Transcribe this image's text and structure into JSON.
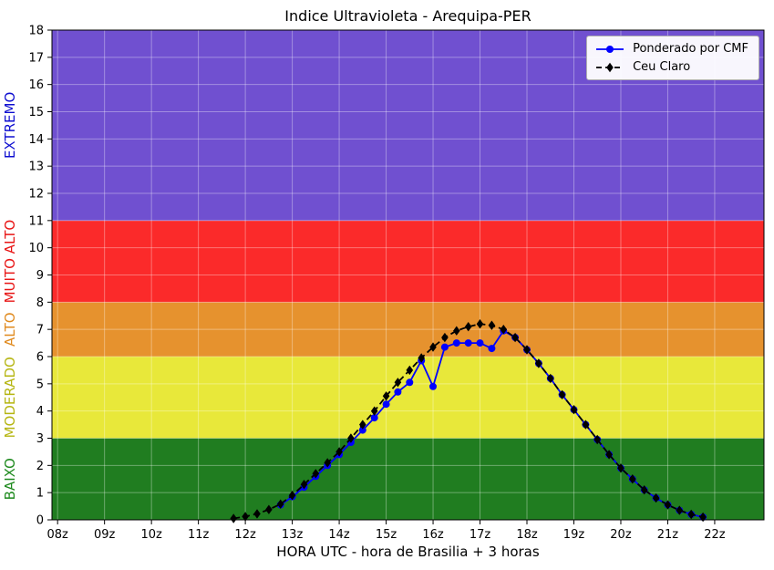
{
  "chart_data": {
    "type": "line",
    "title": "Indice Ultravioleta - Arequipa-PER",
    "xlabel": "HORA UTC - hora de Brasilia + 3 horas",
    "ylabel": "",
    "xlim": [
      7.88,
      23.05
    ],
    "ylim": [
      0,
      18
    ],
    "grid": true,
    "grid_color": "rgba(255,255,255,0.35)",
    "x_ticks": [
      {
        "value": 8,
        "label": "08z"
      },
      {
        "value": 9,
        "label": "09z"
      },
      {
        "value": 10,
        "label": "10z"
      },
      {
        "value": 11,
        "label": "11z"
      },
      {
        "value": 12,
        "label": "12z"
      },
      {
        "value": 13,
        "label": "13z"
      },
      {
        "value": 14,
        "label": "14z"
      },
      {
        "value": 15,
        "label": "15z"
      },
      {
        "value": 16,
        "label": "16z"
      },
      {
        "value": 17,
        "label": "17z"
      },
      {
        "value": 18,
        "label": "18z"
      },
      {
        "value": 19,
        "label": "19z"
      },
      {
        "value": 20,
        "label": "20z"
      },
      {
        "value": 21,
        "label": "21z"
      },
      {
        "value": 22,
        "label": "22z"
      }
    ],
    "y_ticks": [
      0,
      1,
      2,
      3,
      4,
      5,
      6,
      7,
      8,
      9,
      10,
      11,
      12,
      13,
      14,
      15,
      16,
      17,
      18
    ],
    "bands": [
      {
        "name": "BAIXO",
        "from": 0,
        "to": 3,
        "color": "#207d20",
        "label_color": "#1e8a1e"
      },
      {
        "name": "MODERADO",
        "from": 3,
        "to": 6,
        "color": "#e8e83a",
        "label_color": "#b5b511"
      },
      {
        "name": "ALTO",
        "from": 6,
        "to": 8,
        "color": "#e6922e",
        "label_color": "#e08a1e"
      },
      {
        "name": "MUITO ALTO",
        "from": 8,
        "to": 11,
        "color": "#fb2a2a",
        "label_color": "#e81515"
      },
      {
        "name": "EXTREMO",
        "from": 11,
        "to": 18,
        "color": "#7050d0",
        "label_color": "#0f0fd0"
      }
    ],
    "series": [
      {
        "name": "Ponderado por CMF",
        "color": "#0000ff",
        "marker": "circle",
        "dash": "solid",
        "points": [
          [
            12.75,
            0.55
          ],
          [
            13.0,
            0.85
          ],
          [
            13.25,
            1.2
          ],
          [
            13.5,
            1.6
          ],
          [
            13.75,
            2.0
          ],
          [
            14.0,
            2.4
          ],
          [
            14.25,
            2.85
          ],
          [
            14.5,
            3.3
          ],
          [
            14.75,
            3.75
          ],
          [
            15.0,
            4.25
          ],
          [
            15.25,
            4.7
          ],
          [
            15.5,
            5.05
          ],
          [
            15.75,
            5.85
          ],
          [
            16.0,
            4.9
          ],
          [
            16.25,
            6.35
          ],
          [
            16.5,
            6.5
          ],
          [
            16.75,
            6.5
          ],
          [
            17.0,
            6.5
          ],
          [
            17.25,
            6.3
          ],
          [
            17.5,
            6.95
          ],
          [
            17.75,
            6.7
          ],
          [
            18.0,
            6.25
          ],
          [
            18.25,
            5.75
          ],
          [
            18.5,
            5.2
          ],
          [
            18.75,
            4.6
          ],
          [
            19.0,
            4.05
          ],
          [
            19.25,
            3.5
          ],
          [
            19.5,
            2.95
          ],
          [
            19.75,
            2.4
          ],
          [
            20.0,
            1.9
          ],
          [
            20.25,
            1.5
          ],
          [
            20.5,
            1.1
          ],
          [
            20.75,
            0.8
          ],
          [
            21.0,
            0.55
          ],
          [
            21.25,
            0.35
          ],
          [
            21.5,
            0.2
          ],
          [
            21.75,
            0.1
          ]
        ]
      },
      {
        "name": "Ceu Claro",
        "color": "#000000",
        "marker": "diamond",
        "dash": "dashed",
        "points": [
          [
            11.75,
            0.05
          ],
          [
            12.0,
            0.12
          ],
          [
            12.25,
            0.22
          ],
          [
            12.5,
            0.38
          ],
          [
            12.75,
            0.58
          ],
          [
            13.0,
            0.9
          ],
          [
            13.25,
            1.3
          ],
          [
            13.5,
            1.7
          ],
          [
            13.75,
            2.1
          ],
          [
            14.0,
            2.5
          ],
          [
            14.25,
            3.0
          ],
          [
            14.5,
            3.5
          ],
          [
            14.75,
            4.0
          ],
          [
            15.0,
            4.55
          ],
          [
            15.25,
            5.05
          ],
          [
            15.5,
            5.5
          ],
          [
            15.75,
            5.95
          ],
          [
            16.0,
            6.35
          ],
          [
            16.25,
            6.7
          ],
          [
            16.5,
            6.95
          ],
          [
            16.75,
            7.1
          ],
          [
            17.0,
            7.2
          ],
          [
            17.25,
            7.15
          ],
          [
            17.5,
            7.0
          ],
          [
            17.75,
            6.7
          ],
          [
            18.0,
            6.25
          ],
          [
            18.25,
            5.75
          ],
          [
            18.5,
            5.2
          ],
          [
            18.75,
            4.6
          ],
          [
            19.0,
            4.05
          ],
          [
            19.25,
            3.5
          ],
          [
            19.5,
            2.95
          ],
          [
            19.75,
            2.4
          ],
          [
            20.0,
            1.9
          ],
          [
            20.25,
            1.5
          ],
          [
            20.5,
            1.1
          ],
          [
            20.75,
            0.8
          ],
          [
            21.0,
            0.55
          ],
          [
            21.25,
            0.35
          ],
          [
            21.5,
            0.2
          ],
          [
            21.75,
            0.1
          ]
        ]
      }
    ],
    "legend": {
      "position": "top-right"
    }
  }
}
